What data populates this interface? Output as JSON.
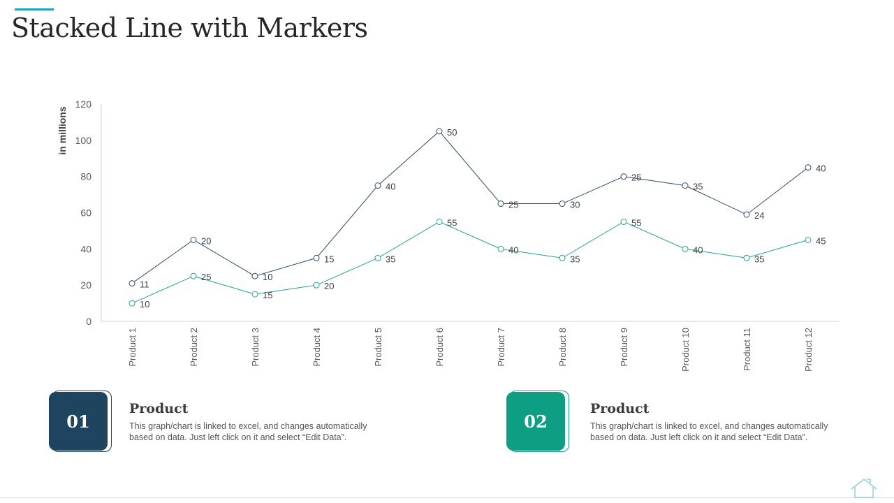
{
  "title": "Stacked Line with Markers",
  "colors": {
    "accent": "#1fa3b8",
    "series1": "#2e4a6b",
    "series2": "#22a499",
    "card1": "#1e4460",
    "card2": "#0e9e84"
  },
  "chart_data": {
    "type": "line",
    "stacked": true,
    "markers": true,
    "ylabel": "in millions",
    "ylim": [
      0,
      120
    ],
    "yticks": [
      0,
      20,
      40,
      60,
      80,
      100,
      120
    ],
    "grid": false,
    "legend": "none",
    "categories": [
      "Product 1",
      "Product 2",
      "Product 3",
      "Product 4",
      "Product 5",
      "Product 6",
      "Product 7",
      "Product 8",
      "Product 9",
      "Product 10",
      "Product 11",
      "Product 12"
    ],
    "series": [
      {
        "values": [
          10,
          25,
          15,
          20,
          35,
          55,
          40,
          35,
          55,
          40,
          35,
          45
        ]
      },
      {
        "values": [
          11,
          20,
          10,
          15,
          40,
          50,
          25,
          30,
          25,
          35,
          24,
          40
        ]
      }
    ]
  },
  "cards": [
    {
      "number": "01",
      "heading": "Product",
      "desc_line1": "This graph/chart is linked to excel, and changes automatically",
      "desc_line2": "based on data. Just left click on it and select “Edit Data”."
    },
    {
      "number": "02",
      "heading": "Product",
      "desc_line1": "This graph/chart is linked to excel, and changes automatically",
      "desc_line2": "based on data. Just left click on it and select “Edit Data”."
    }
  ]
}
